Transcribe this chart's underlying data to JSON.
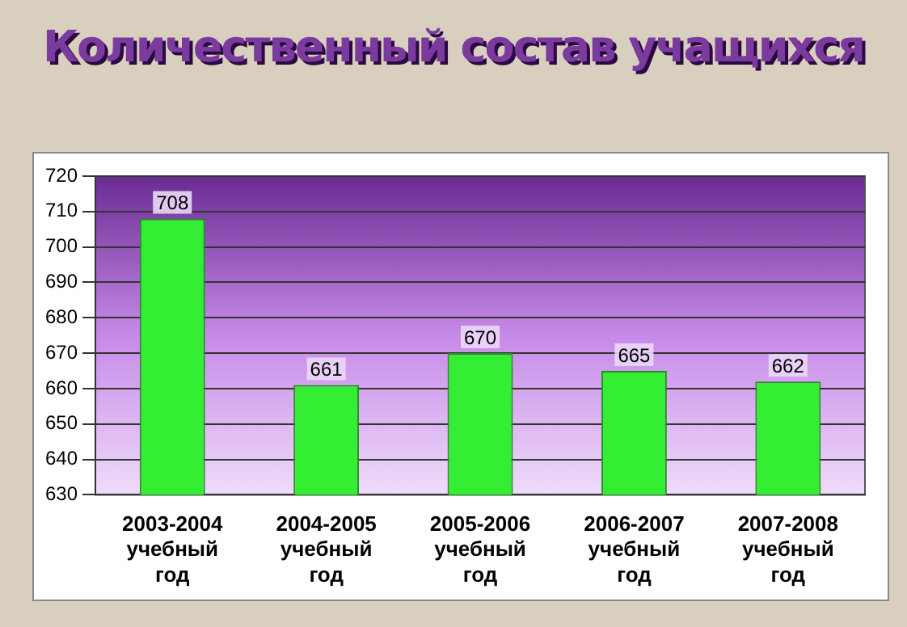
{
  "chart_data": {
    "type": "bar",
    "title": "Количественный состав учащихся",
    "categories": [
      "2003-2004 учебный год",
      "2004-2005 учебный год",
      "2005-2006 учебный год",
      "2006-2007 учебный год",
      "2007-2008 учебный год"
    ],
    "values": [
      708,
      661,
      670,
      665,
      662
    ],
    "color": "#33ee33",
    "ylim": [
      630,
      720
    ],
    "yticks": [
      630,
      640,
      650,
      660,
      670,
      680,
      690,
      700,
      710,
      720
    ],
    "grid": "y",
    "data_labels": true,
    "legend": false
  }
}
